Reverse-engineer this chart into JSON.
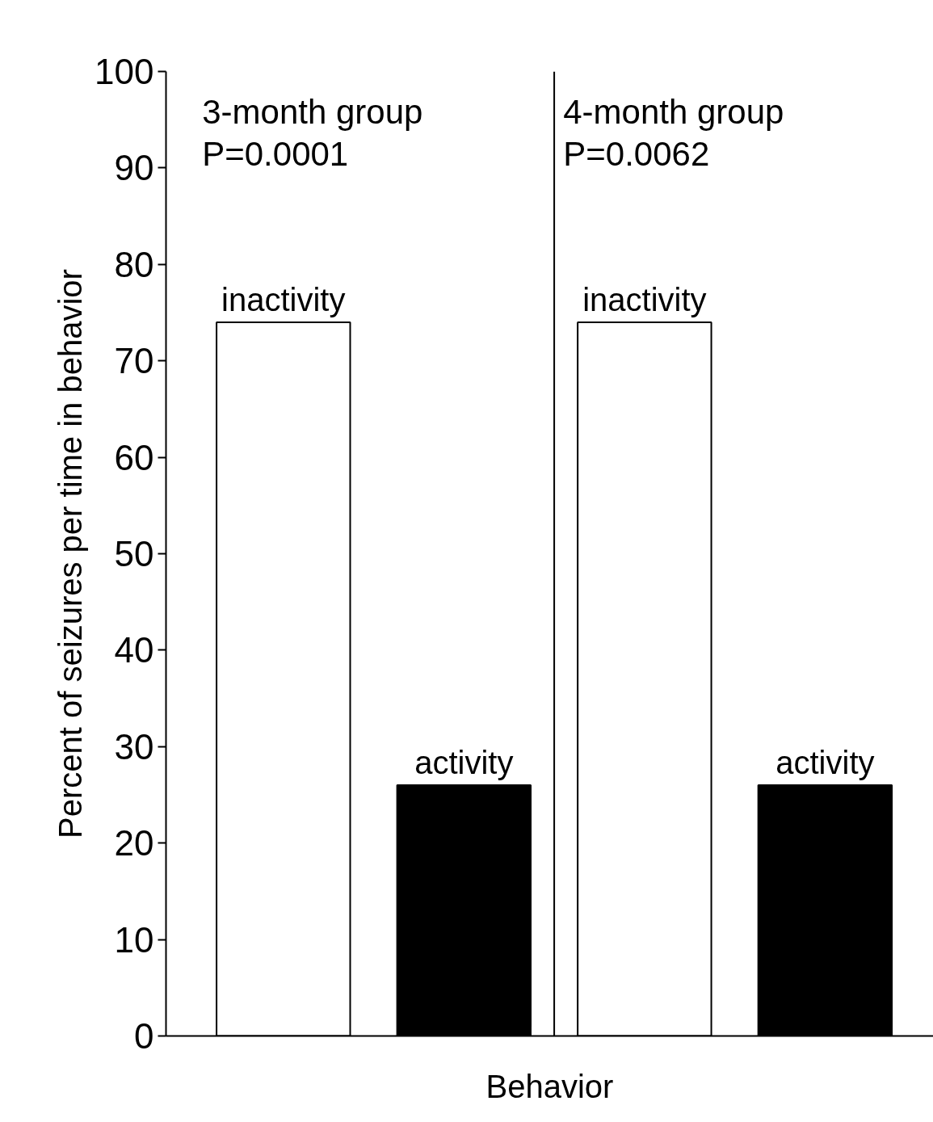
{
  "chart_data": {
    "type": "bar",
    "categories": [
      "inactivity",
      "activity",
      "inactivity",
      "activity"
    ],
    "values": [
      74,
      26,
      74,
      26
    ],
    "colors": [
      "#ffffff",
      "#000000",
      "#ffffff",
      "#000000"
    ],
    "ylabel": "Percent of seizures per time in behavior",
    "xlabel": "Behavior",
    "ylim": [
      0,
      100
    ],
    "yticks": [
      0,
      10,
      20,
      30,
      40,
      50,
      60,
      70,
      80,
      90,
      100
    ],
    "grid": false,
    "annotations": [
      "3-month group",
      "P=0.0001",
      "4-month group",
      "P=0.0062"
    ]
  }
}
